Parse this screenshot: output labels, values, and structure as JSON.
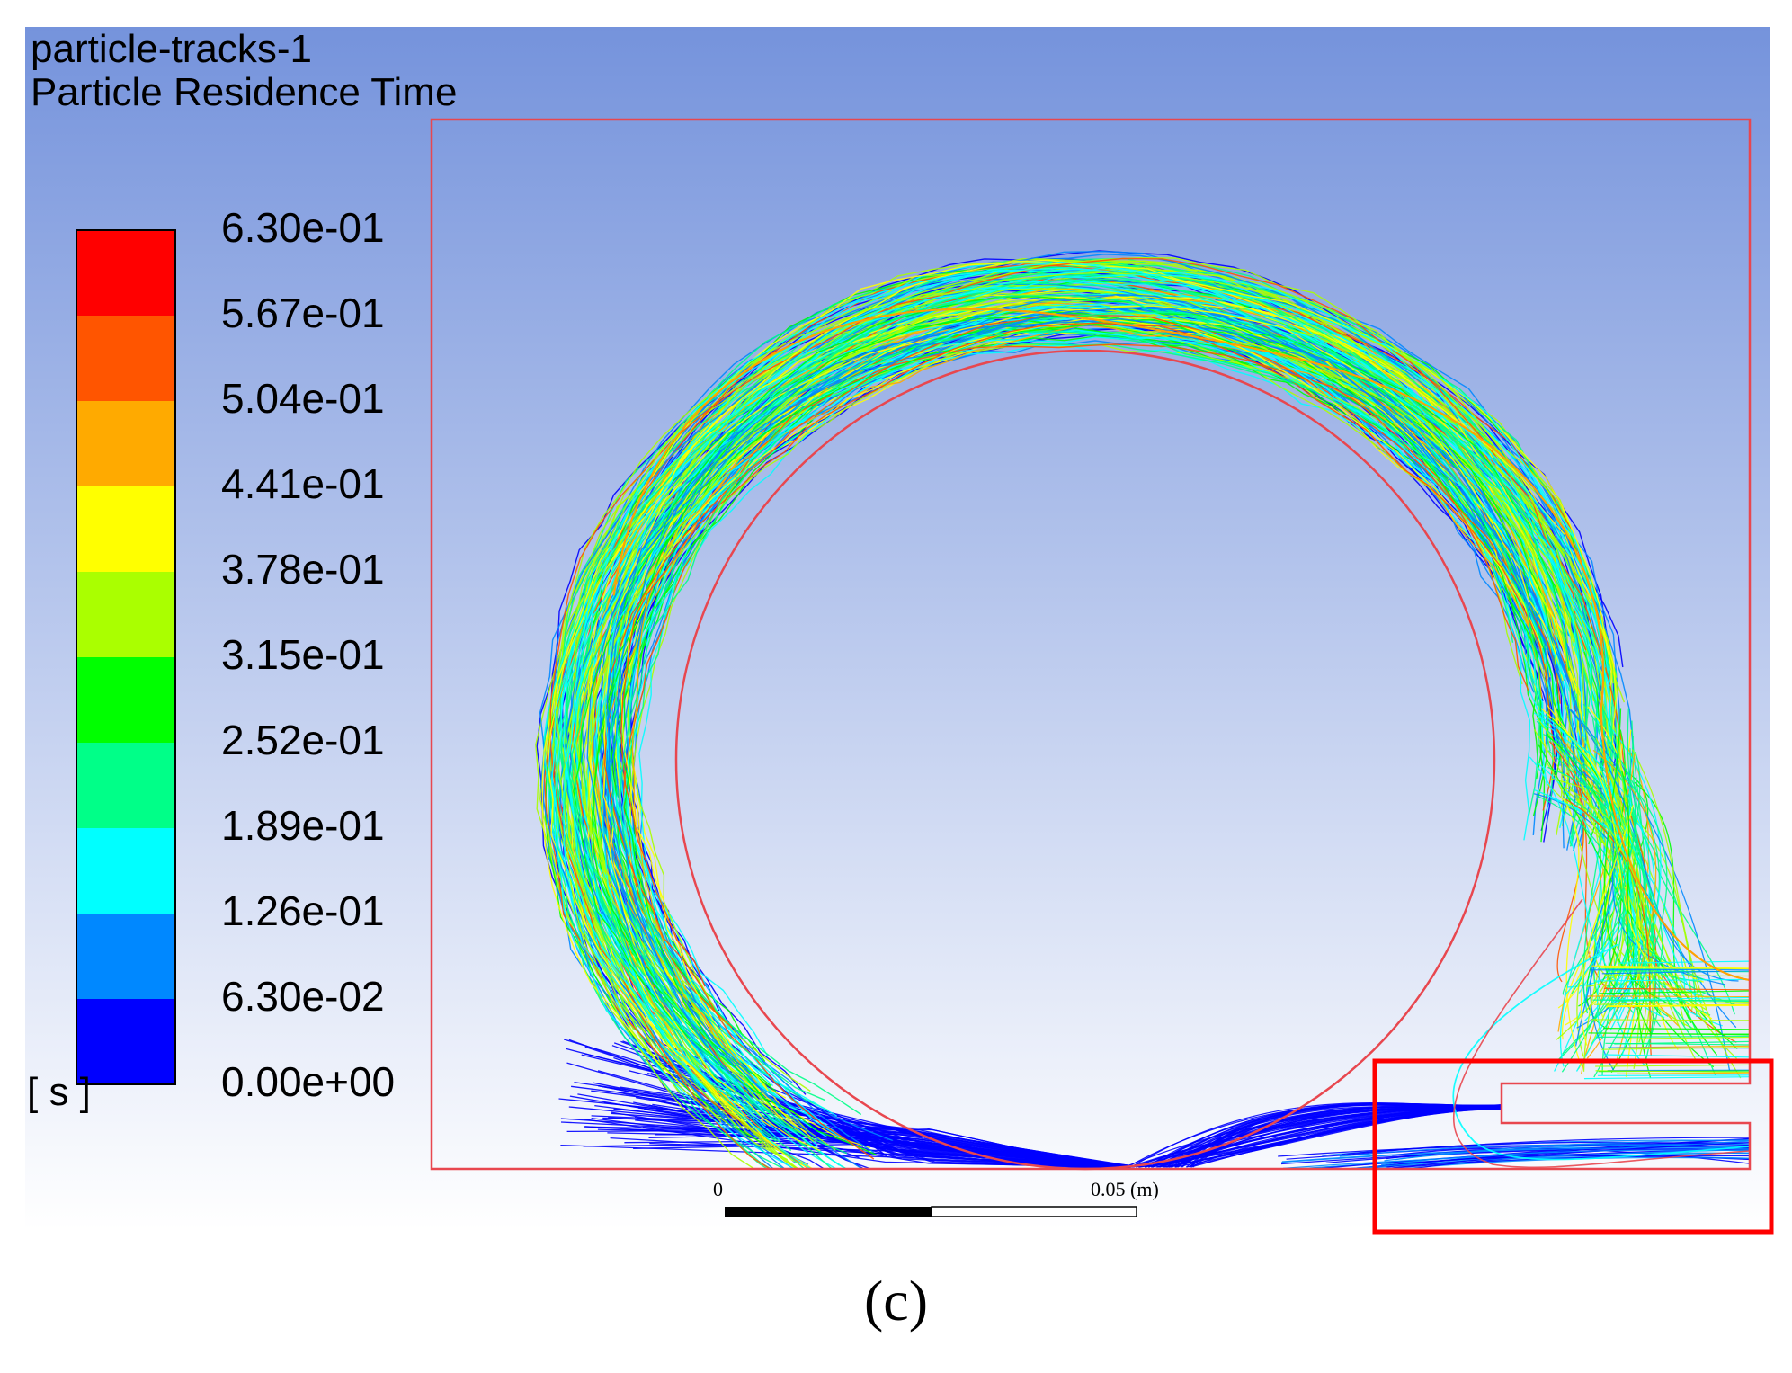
{
  "plot": {
    "title_line1": "particle-tracks-1",
    "title_line2": "Particle Residence Time",
    "background_top": "#7593dc",
    "background_bottom": "#ffffff"
  },
  "legend": {
    "unit": "[ s ]",
    "levels": [
      {
        "label": "6.30e-01",
        "color": "#ff0000"
      },
      {
        "label": "5.67e-01",
        "color": "#ff5500"
      },
      {
        "label": "5.04e-01",
        "color": "#ffaa00"
      },
      {
        "label": "4.41e-01",
        "color": "#ffff00"
      },
      {
        "label": "3.78e-01",
        "color": "#aaff00"
      },
      {
        "label": "3.15e-01",
        "color": "#00ff00"
      },
      {
        "label": "2.52e-01",
        "color": "#00ff88"
      },
      {
        "label": "1.89e-01",
        "color": "#00ffff"
      },
      {
        "label": "1.26e-01",
        "color": "#0088ff"
      },
      {
        "label": "6.30e-02",
        "color": "#0000ff"
      },
      {
        "label": "0.00e+00",
        "color": null
      }
    ]
  },
  "scale_bar": {
    "start_label": "0",
    "end_label": "0.05 (m)"
  },
  "geometry_color": "#e8474f",
  "highlight_box_color": "#ff0000",
  "caption": "(c)"
}
